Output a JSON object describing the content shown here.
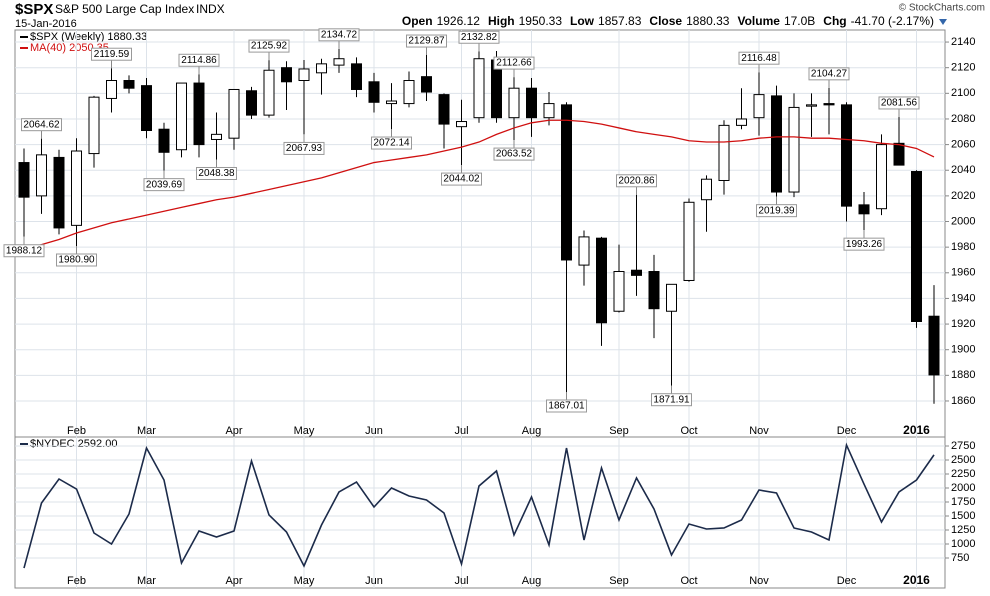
{
  "chart_data": [
    {
      "type": "candlestick",
      "header": {
        "ticker": "$SPX",
        "name": "S&P 500 Large Cap Index",
        "exchange": "INDX",
        "date": "15-Jan-2016",
        "copyright": "© StockCharts.com",
        "quote": [
          {
            "label": "Open",
            "value": "1926.12"
          },
          {
            "label": "High",
            "value": "1950.33"
          },
          {
            "label": "Low",
            "value": "1857.83"
          },
          {
            "label": "Close",
            "value": "1880.33"
          },
          {
            "label": "Volume",
            "value": "17.0B"
          },
          {
            "label": "Chg",
            "value": "-41.70 (-2.17%)"
          }
        ]
      },
      "name": "$SPX (Weekly) 1880.33",
      "open": [
        2046,
        2020,
        2050,
        1997,
        2053,
        2096,
        2110,
        2106,
        2072,
        2056,
        2108,
        2064,
        2065,
        2102,
        2083,
        2120,
        2110,
        2116,
        2122,
        2123,
        2109,
        2092,
        2092,
        2113,
        2099,
        2074,
        2081,
        2126,
        2081,
        2104,
        2081,
        2091,
        1966,
        1987,
        1930,
        1962,
        1961,
        1930,
        1954,
        2017,
        2032,
        2075,
        2081,
        2098,
        2023,
        2090,
        2092,
        2091,
        2013,
        2010,
        2061,
        2039,
        1926.12
      ],
      "high": [
        2057,
        2064.62,
        2056,
        2065,
        2098,
        2119.59,
        2114,
        2112,
        2077,
        2108,
        2114.86,
        2085,
        2103,
        2105,
        2125.92,
        2125,
        2126,
        2127,
        2134.72,
        2128,
        2116,
        2108,
        2117,
        2129.87,
        2100,
        2095,
        2132.82,
        2133,
        2112.66,
        2112,
        2101,
        2093,
        1993,
        1988,
        1982,
        2020.86,
        1974,
        1951,
        2018,
        2036,
        2079,
        2104,
        2116.48,
        2106,
        2100,
        2100,
        2104.27,
        2093,
        2023,
        2068,
        2081.56,
        2040,
        1950.33
      ],
      "low": [
        1988.12,
        2006,
        1990,
        1980.9,
        2042,
        2085,
        2100,
        2065,
        2039.69,
        2050,
        2050,
        2048.38,
        2056,
        2080,
        2081,
        2087,
        2067.93,
        2099,
        2116,
        2097,
        2085,
        2072.14,
        2089,
        2094,
        2057,
        2044.02,
        2077,
        2077,
        2063.52,
        2066,
        2075,
        1867.01,
        1950,
        1903,
        1929,
        1942,
        1909,
        1871.91,
        1953,
        1992,
        2021,
        2072,
        2067,
        2019.39,
        2019,
        2066,
        2068,
        2000,
        1993.26,
        2005,
        2044,
        1917,
        1857.83
      ],
      "close": [
        2019,
        2052,
        1995,
        2055,
        2097,
        2110,
        2104,
        2071,
        2054,
        2108,
        2060,
        2068,
        2103,
        2083,
        2118,
        2109,
        2119,
        2123,
        2127,
        2103,
        2093,
        2094,
        2110,
        2101,
        2076,
        2078,
        2127,
        2081,
        2104,
        2081,
        2092,
        1970,
        1988,
        1921,
        1961,
        1958,
        1932,
        1951,
        2015,
        2033,
        2075,
        2080,
        2099,
        2023,
        2089,
        2091,
        2091,
        2012,
        2006,
        2060,
        2044,
        1922,
        1880.33
      ],
      "up_color": "#ffffff",
      "down_color": "#000000",
      "overlay": {
        "name": "MA(40) 2050.35",
        "color": "#d01010",
        "values": [
          1978,
          1982,
          1986,
          1991,
          1995,
          1999,
          2002,
          2005,
          2008,
          2011,
          2014,
          2017,
          2019,
          2022,
          2025,
          2028,
          2031,
          2034,
          2038,
          2042,
          2046,
          2048,
          2050,
          2052,
          2055,
          2058,
          2062,
          2068,
          2073,
          2077,
          2079,
          2079,
          2078,
          2076,
          2073,
          2070,
          2068,
          2066,
          2063,
          2062,
          2062,
          2063,
          2065,
          2066,
          2066,
          2065,
          2065,
          2064,
          2063,
          2061,
          2060,
          2057,
          2050.35
        ]
      },
      "annotations": [
        {
          "index": 0,
          "at": "low",
          "label": "1988.12"
        },
        {
          "index": 1,
          "at": "high",
          "label": "2064.62"
        },
        {
          "index": 3,
          "at": "low",
          "label": "1980.90"
        },
        {
          "index": 5,
          "at": "high",
          "label": "2119.59"
        },
        {
          "index": 8,
          "at": "low",
          "label": "2039.69"
        },
        {
          "index": 10,
          "at": "high",
          "label": "2114.86"
        },
        {
          "index": 11,
          "at": "low",
          "label": "2048.38"
        },
        {
          "index": 14,
          "at": "high",
          "label": "2125.92"
        },
        {
          "index": 16,
          "at": "low",
          "label": "2067.93"
        },
        {
          "index": 18,
          "at": "high",
          "label": "2134.72"
        },
        {
          "index": 21,
          "at": "low",
          "label": "2072.14"
        },
        {
          "index": 23,
          "at": "high",
          "label": "2129.87"
        },
        {
          "index": 25,
          "at": "low",
          "label": "2044.02"
        },
        {
          "index": 26,
          "at": "high",
          "label": "2132.82"
        },
        {
          "index": 28,
          "at": "high",
          "label": "2112.66"
        },
        {
          "index": 28,
          "at": "low",
          "label": "2063.52"
        },
        {
          "index": 31,
          "at": "low",
          "label": "1867.01"
        },
        {
          "index": 35,
          "at": "high",
          "label": "2020.86"
        },
        {
          "index": 37,
          "at": "low",
          "label": "1871.91"
        },
        {
          "index": 42,
          "at": "high",
          "label": "2116.48"
        },
        {
          "index": 43,
          "at": "low",
          "label": "2019.39"
        },
        {
          "index": 46,
          "at": "high",
          "label": "2104.27"
        },
        {
          "index": 48,
          "at": "low",
          "label": "1993.26"
        },
        {
          "index": 50,
          "at": "high",
          "label": "2081.56"
        }
      ],
      "month_labels": [
        {
          "index": 3,
          "label": "Feb"
        },
        {
          "index": 7,
          "label": "Mar"
        },
        {
          "index": 12,
          "label": "Apr"
        },
        {
          "index": 16,
          "label": "May"
        },
        {
          "index": 20,
          "label": "Jun"
        },
        {
          "index": 25,
          "label": "Jul"
        },
        {
          "index": 29,
          "label": "Aug"
        },
        {
          "index": 34,
          "label": "Sep"
        },
        {
          "index": 38,
          "label": "Oct"
        },
        {
          "index": 42,
          "label": "Nov"
        },
        {
          "index": 47,
          "label": "Dec"
        },
        {
          "index": 51,
          "label": "2016"
        }
      ],
      "ylim": [
        1831.9,
        2149.4
      ],
      "yticks": [
        1860,
        1880,
        1900,
        1920,
        1940,
        1960,
        1980,
        2000,
        2020,
        2040,
        2060,
        2080,
        2100,
        2120,
        2140
      ],
      "grid": true
    },
    {
      "type": "line",
      "name": "$NYDEC 2592.00",
      "color": "#1c2b4a",
      "values": [
        570,
        1732,
        2161,
        1982,
        1196,
        1000,
        1536,
        2714,
        2143,
        661,
        1232,
        1125,
        1232,
        2482,
        1518,
        1214,
        607,
        1339,
        1929,
        2107,
        1661,
        2000,
        1857,
        1786,
        1554,
        643,
        2036,
        2304,
        1161,
        1839,
        982,
        2714,
        1071,
        2357,
        1429,
        2179,
        1625,
        804,
        1357,
        1268,
        1286,
        1429,
        1964,
        1911,
        1286,
        1214,
        1071,
        2768,
        2071,
        1393,
        1929,
        2143,
        2592
      ],
      "ylim": [
        214,
        2911
      ],
      "yticks": [
        750,
        1000,
        1250,
        1500,
        1750,
        2000,
        2250,
        2500,
        2750
      ],
      "grid": true
    }
  ]
}
